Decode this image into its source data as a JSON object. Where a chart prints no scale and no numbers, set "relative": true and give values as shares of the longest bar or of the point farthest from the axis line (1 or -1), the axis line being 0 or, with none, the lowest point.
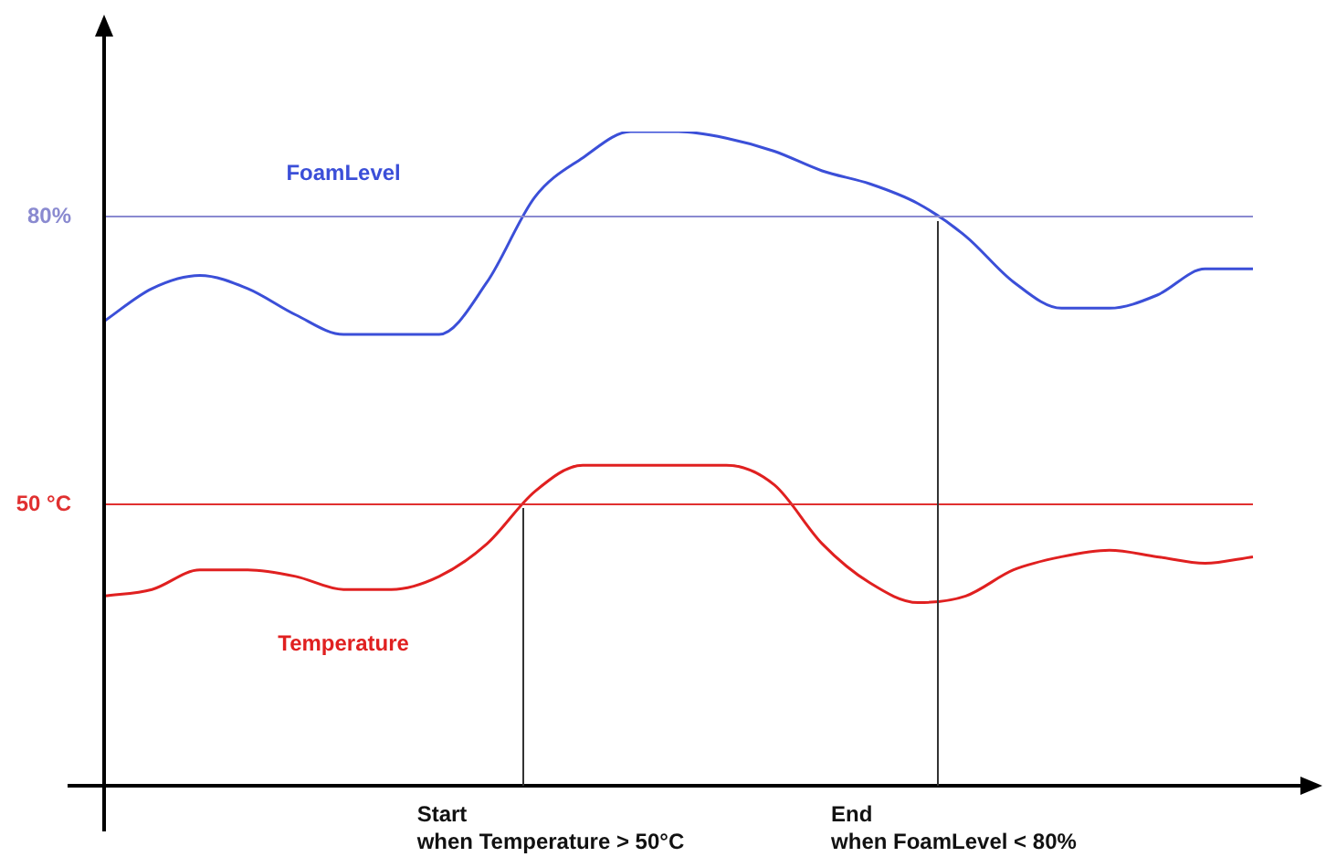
{
  "chart_data": {
    "type": "line",
    "relative": true,
    "categories": [
      null,
      null,
      null,
      null,
      null,
      null,
      null,
      null,
      null,
      null,
      null,
      null,
      null,
      null,
      null,
      null,
      null,
      null,
      null,
      null,
      null,
      null,
      null,
      null,
      null
    ],
    "series": [
      {
        "name": "FoamLevel",
        "color": "#3b4fd8",
        "values": [
          0.71,
          0.76,
          0.78,
          0.76,
          0.72,
          0.69,
          0.69,
          0.69,
          0.77,
          0.9,
          0.96,
          1,
          1,
          0.99,
          0.97,
          0.94,
          0.92,
          0.89,
          0.84,
          0.77,
          0.73,
          0.73,
          0.75,
          0.79,
          0.79
        ]
      },
      {
        "name": "Temperature",
        "color": "#e02020",
        "values": [
          0.29,
          0.3,
          0.33,
          0.33,
          0.32,
          0.3,
          0.3,
          0.32,
          0.37,
          0.45,
          0.49,
          0.49,
          0.49,
          0.49,
          0.46,
          0.37,
          0.31,
          0.28,
          0.29,
          0.33,
          0.35,
          0.36,
          0.35,
          0.34,
          0.35
        ]
      }
    ],
    "ref_lines": [
      {
        "axis": "y",
        "value": 0.87,
        "color": "#8a8ad0"
      },
      {
        "axis": "y",
        "value": 0.43,
        "color": "#e03030"
      }
    ],
    "annotations": [
      "80%",
      "50 °C",
      "Start\nwhen Temperature > 50°C",
      "End\nwhen FoamLevel < 80%"
    ],
    "grid": false,
    "legend": false,
    "marker": "none",
    "line_style": "solid"
  }
}
